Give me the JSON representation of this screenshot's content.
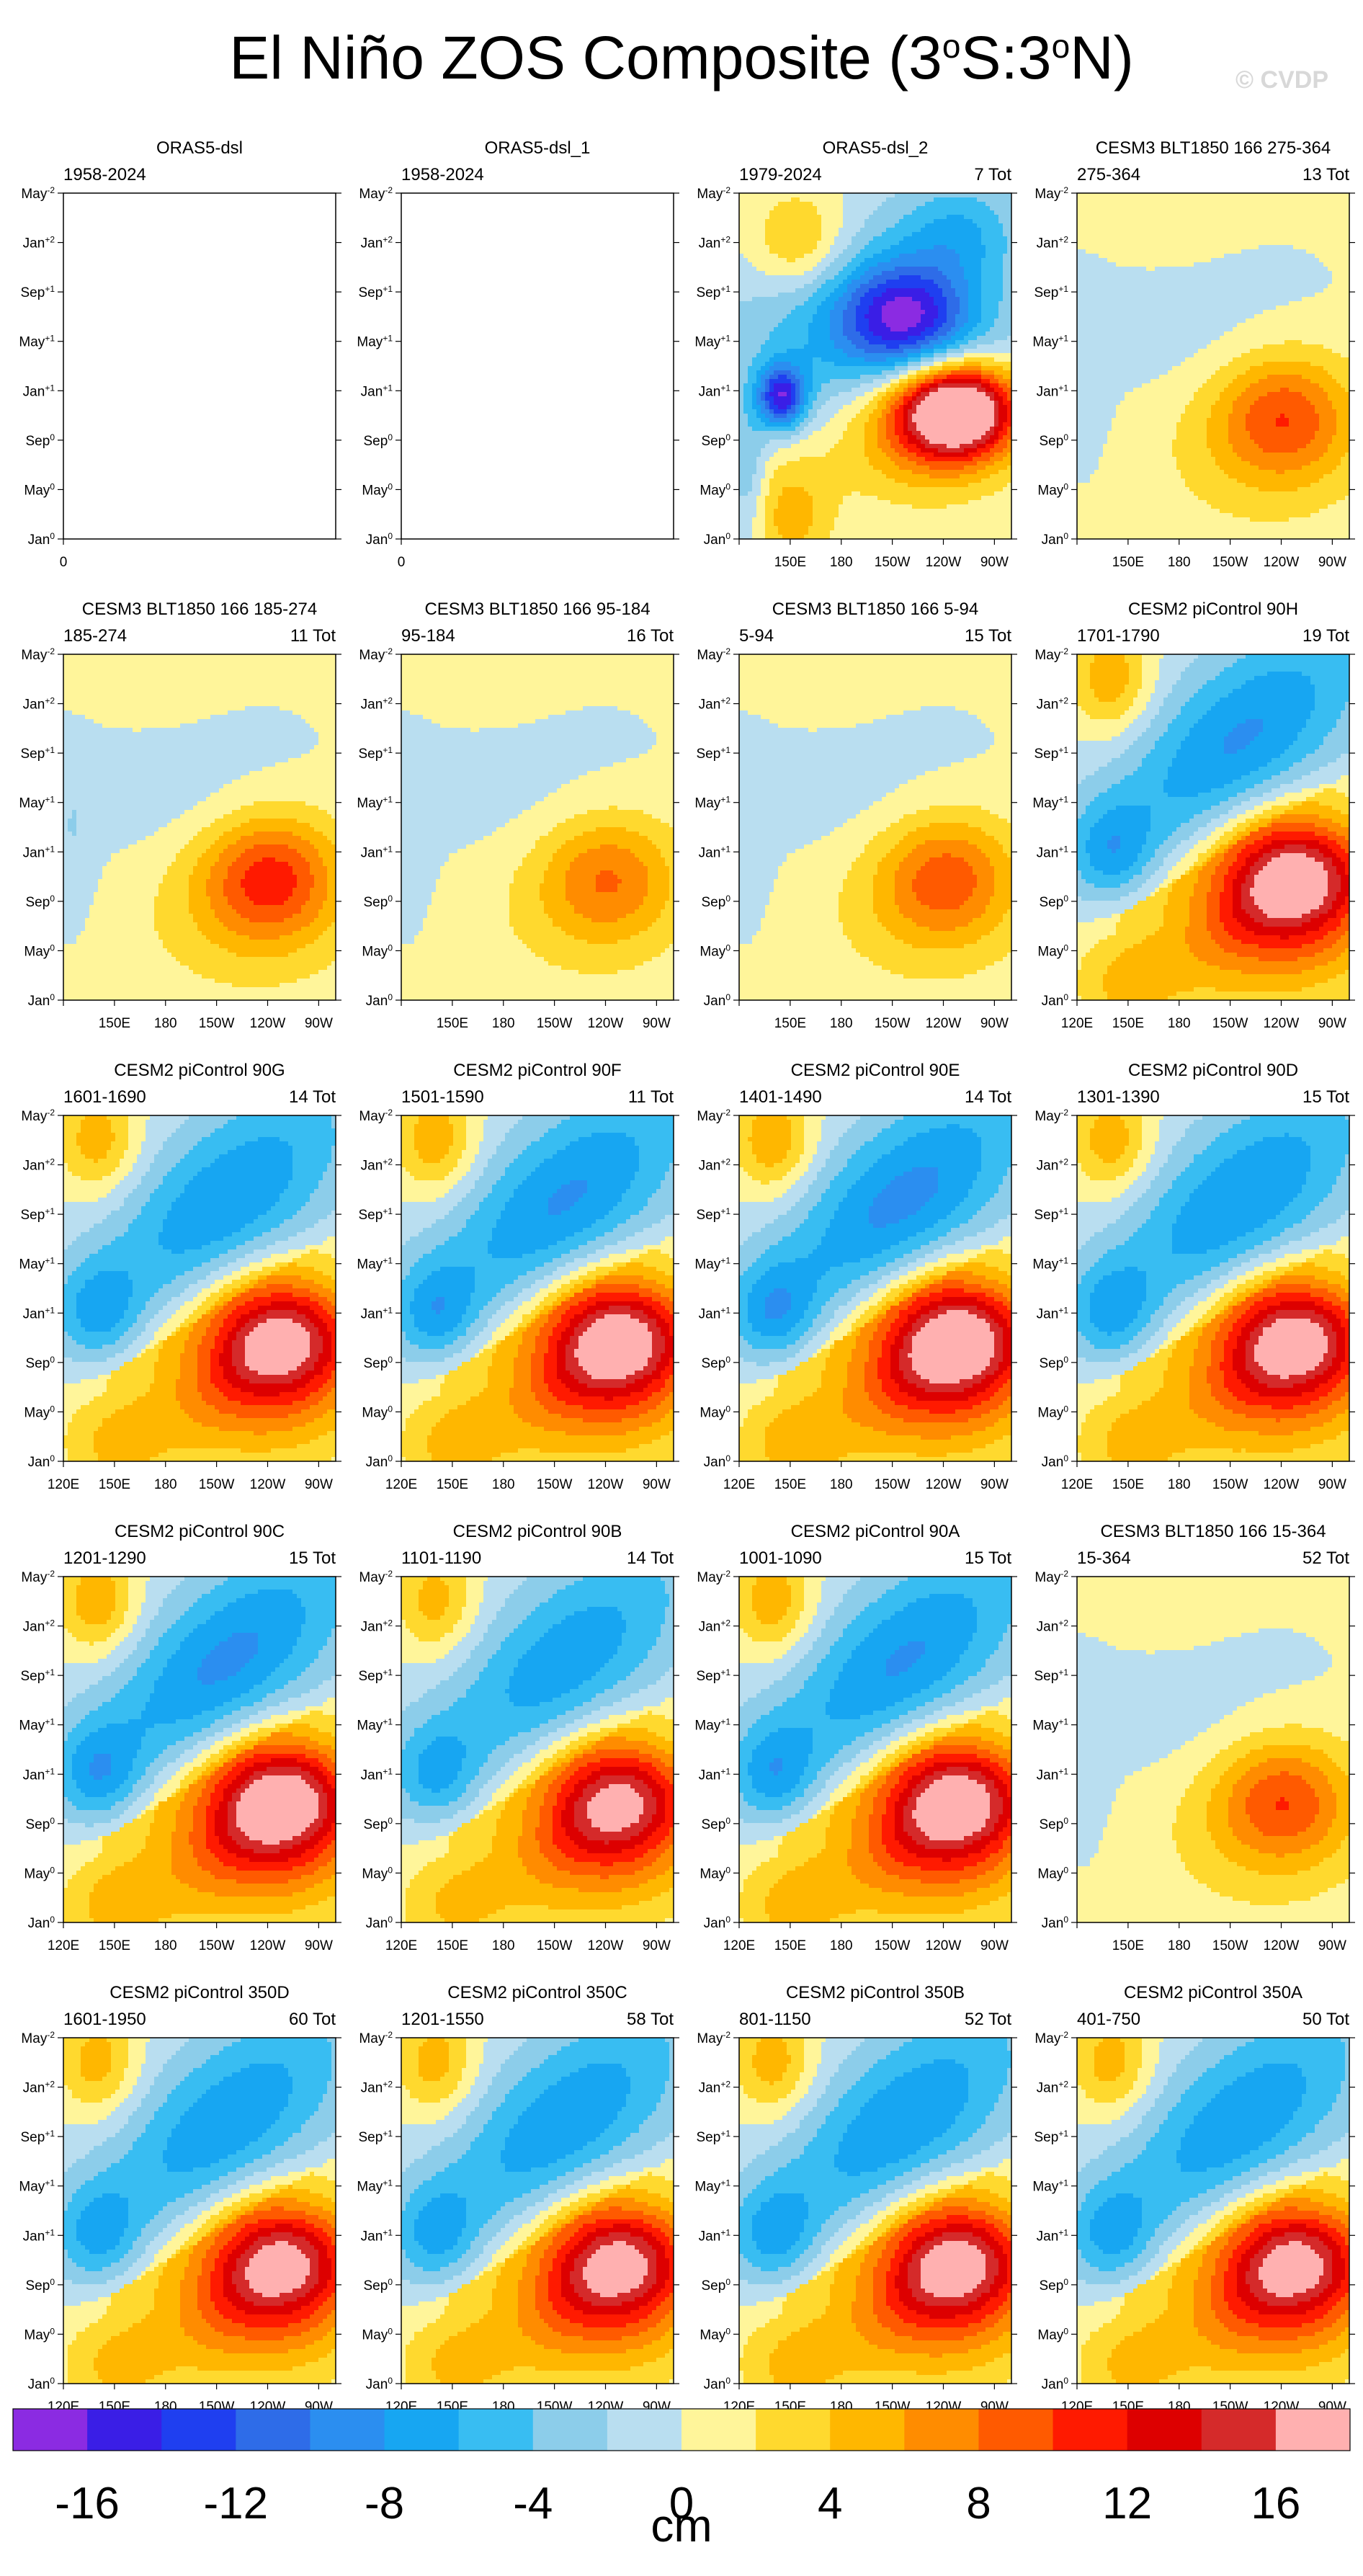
{
  "page": {
    "title_main": "El Niño ZOS Composite (3",
    "title_deg1": "o",
    "title_mid": "S:3",
    "title_deg2": "o",
    "title_end": "N)",
    "watermark": "© CVDP"
  },
  "colors": {
    "levels": [
      -16,
      -14,
      -12,
      -10,
      -8,
      -6,
      -4,
      -2,
      0,
      2,
      4,
      6,
      8,
      10,
      12,
      14,
      16
    ],
    "palette": [
      "#8b2be2",
      "#3a1ee6",
      "#1f3ff0",
      "#2e6ce8",
      "#2b8ef0",
      "#17a6f2",
      "#38bdf2",
      "#8ccdea",
      "#b9def0",
      "#fff59a",
      "#ffd92e",
      "#ffb700",
      "#ff8c00",
      "#ff5a00",
      "#ff1a00",
      "#dd0000",
      "#d52a2a",
      "#ffb0b0"
    ]
  },
  "chart_data": {
    "type": "heatmap",
    "layout": "5 rows x 4 columns of Hovmöller panels (longitude vs. time)",
    "x": {
      "ticks_shown": [
        "120E",
        "150E",
        "180",
        "150W",
        "120W",
        "90W"
      ],
      "range_deg_east": [
        120,
        280
      ]
    },
    "y": {
      "ticks": [
        "Jan",
        "May",
        "Sep",
        "Jan",
        "May",
        "Sep",
        "Jan",
        "May"
      ],
      "tick_sup": [
        "0",
        "0",
        "0",
        "+1",
        "+1",
        "+1",
        "+2",
        "-2"
      ],
      "range_months": [
        0,
        28
      ]
    },
    "colorbar": {
      "unit": "cm",
      "labels": [
        "-16",
        "-12",
        "-8",
        "-4",
        "0",
        "4",
        "8",
        "12",
        "16"
      ]
    },
    "panels": [
      {
        "title": "ORAS5-dsl",
        "left": "1958-2024",
        "right": "",
        "empty": true,
        "x_labels": false
      },
      {
        "title": "ORAS5-dsl_1",
        "left": "1958-2024",
        "right": "",
        "empty": true,
        "x_labels": false
      },
      {
        "title": "ORAS5-dsl_2",
        "left": "1979-2024",
        "right": "7 Tot",
        "style": "obs",
        "amp": 1.25,
        "x_labels": true,
        "no120": true
      },
      {
        "title": "CESM3 BLT1850 166 275-364",
        "left": "275-364",
        "right": "13 Tot",
        "style": "weak",
        "amp": 0.55,
        "x_labels": true,
        "no120": true
      },
      {
        "title": "CESM3 BLT1850 166 185-274",
        "left": "185-274",
        "right": "11 Tot",
        "style": "weak",
        "amp": 0.62,
        "x_labels": true,
        "no120": true
      },
      {
        "title": "CESM3 BLT1850 166 95-184",
        "left": "95-184",
        "right": "16 Tot",
        "style": "weak",
        "amp": 0.45,
        "x_labels": true,
        "no120": true
      },
      {
        "title": "CESM3 BLT1850 166 5-94",
        "left": "5-94",
        "right": "15 Tot",
        "style": "weak",
        "amp": 0.52,
        "x_labels": true,
        "no120": true
      },
      {
        "title": "CESM2 piControl 90H",
        "left": "1701-1790",
        "right": "19 Tot",
        "style": "cesm2",
        "amp": 0.95,
        "x_labels": true
      },
      {
        "title": "CESM2 piControl 90G",
        "left": "1601-1690",
        "right": "14 Tot",
        "style": "cesm2",
        "amp": 0.9,
        "x_labels": true
      },
      {
        "title": "CESM2 piControl 90F",
        "left": "1501-1590",
        "right": "11 Tot",
        "style": "cesm2",
        "amp": 0.95,
        "x_labels": true
      },
      {
        "title": "CESM2 piControl 90E",
        "left": "1401-1490",
        "right": "14 Tot",
        "style": "cesm2",
        "amp": 1.0,
        "x_labels": true
      },
      {
        "title": "CESM2 piControl 90D",
        "left": "1301-1390",
        "right": "15 Tot",
        "style": "cesm2",
        "amp": 0.92,
        "x_labels": true
      },
      {
        "title": "CESM2 piControl 90C",
        "left": "1201-1290",
        "right": "15 Tot",
        "style": "cesm2",
        "amp": 0.98,
        "x_labels": true
      },
      {
        "title": "CESM2 piControl 90B",
        "left": "1101-1190",
        "right": "14 Tot",
        "style": "cesm2",
        "amp": 0.85,
        "x_labels": true
      },
      {
        "title": "CESM2 piControl 90A",
        "left": "1001-1090",
        "right": "15 Tot",
        "style": "cesm2",
        "amp": 0.95,
        "x_labels": true
      },
      {
        "title": "CESM3 BLT1850 166 15-364",
        "left": "15-364",
        "right": "52 Tot",
        "style": "weak",
        "amp": 0.55,
        "x_labels": true,
        "no120": true
      },
      {
        "title": "CESM2 piControl 350D",
        "left": "1601-1950",
        "right": "60 Tot",
        "style": "cesm2",
        "amp": 0.88,
        "x_labels": true
      },
      {
        "title": "CESM2 piControl 350C",
        "left": "1201-1550",
        "right": "58 Tot",
        "style": "cesm2",
        "amp": 0.88,
        "x_labels": true
      },
      {
        "title": "CESM2 piControl 350B",
        "left": "801-1150",
        "right": "52 Tot",
        "style": "cesm2",
        "amp": 0.9,
        "x_labels": true
      },
      {
        "title": "CESM2 piControl 350A",
        "left": "401-750",
        "right": "50 Tot",
        "style": "cesm2",
        "amp": 0.88,
        "x_labels": true
      }
    ]
  }
}
